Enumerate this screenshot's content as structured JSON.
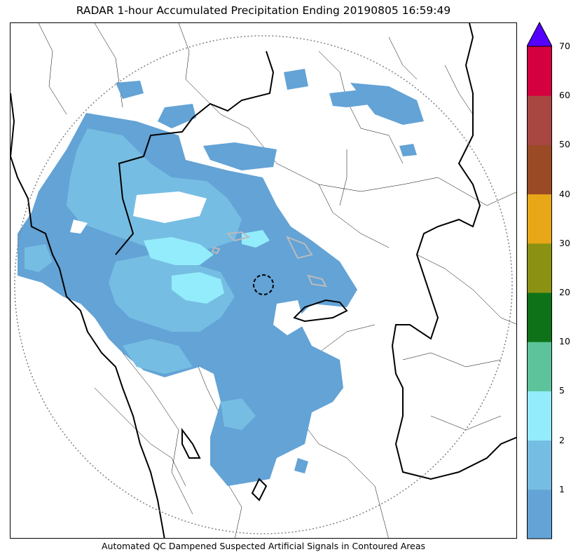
{
  "title": "RADAR 1-hour Accumulated Precipitation Ending 20190805 16:59:49",
  "footnote": "Automated QC Dampened Suspected Artificial Signals in Contoured Areas",
  "colorbar": {
    "levels": [
      {
        "label": "",
        "color": "#63a3d6"
      },
      {
        "label": "1",
        "color": "#76bde3"
      },
      {
        "label": "2",
        "color": "#93ecfb"
      },
      {
        "label": "5",
        "color": "#5cc39a"
      },
      {
        "label": "10",
        "color": "#0e7318"
      },
      {
        "label": "20",
        "color": "#8b9213"
      },
      {
        "label": "30",
        "color": "#e8a716"
      },
      {
        "label": "40",
        "color": "#9a4b26"
      },
      {
        "label": "50",
        "color": "#a84742"
      },
      {
        "label": "60",
        "color": "#d5003f"
      },
      {
        "label": "70",
        "color": "#5500ff"
      }
    ],
    "extend_color": "#5500ff"
  },
  "colors": {
    "precip_light": "#63a3d6",
    "precip_mid": "#76bde3",
    "precip_high": "#93ecfb",
    "boundary": "#000000",
    "range_ring": "#808080"
  }
}
